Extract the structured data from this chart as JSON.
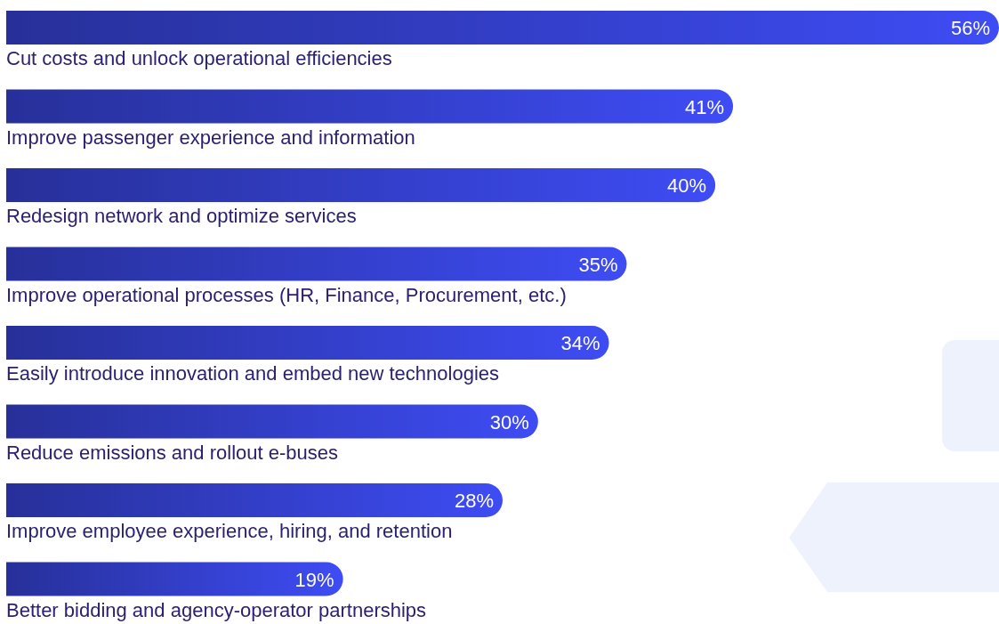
{
  "chart_data": {
    "type": "bar",
    "orientation": "horizontal",
    "relative": false,
    "categories": [
      "Cut costs and unlock operational efficiencies",
      "Improve passenger experience and information",
      "Redesign network and optimize services",
      "Improve operational processes (HR, Finance, Procurement, etc.)",
      "Easily introduce innovation and embed new technologies",
      "Reduce emissions and rollout e-buses",
      "Improve employee experience, hiring, and retention",
      "Better bidding and agency-operator partnerships"
    ],
    "values": [
      56,
      41,
      40,
      35,
      34,
      30,
      28,
      19
    ],
    "value_labels": [
      "56%",
      "41%",
      "40%",
      "35%",
      "34%",
      "30%",
      "28%",
      "19%"
    ],
    "color": "#3440cc"
  }
}
